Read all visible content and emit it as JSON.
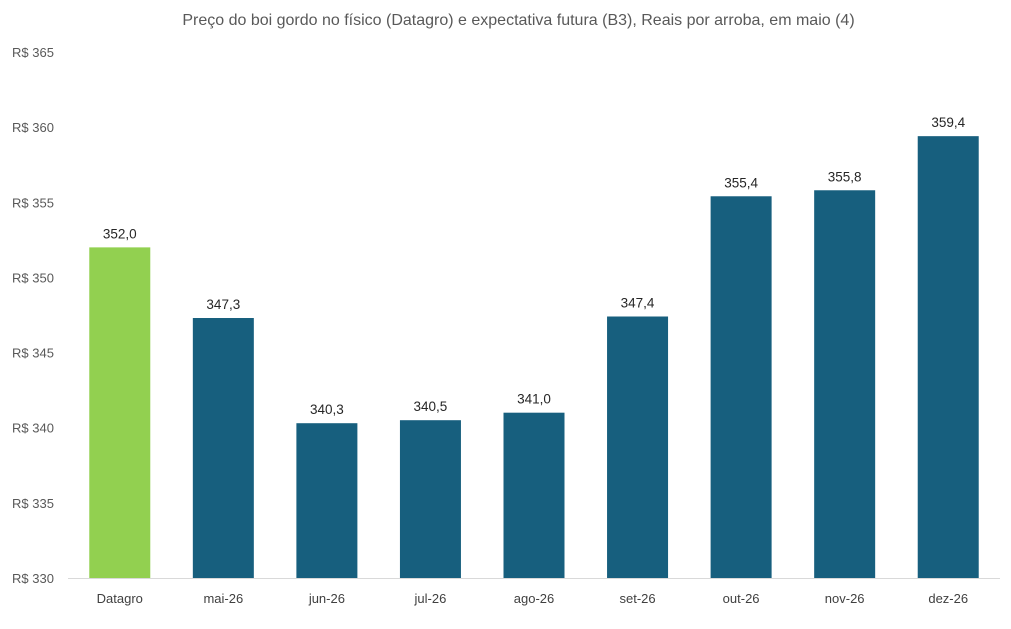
{
  "chart_data": {
    "type": "bar",
    "title": "Preço do boi gordo no físico (Datagro)  e expectativa futura (B3), Reais por arroba, em maio (4)",
    "categories": [
      "Datagro",
      "mai-26",
      "jun-26",
      "jul-26",
      "ago-26",
      "set-26",
      "out-26",
      "nov-26",
      "dez-26"
    ],
    "values": [
      352.0,
      347.3,
      340.3,
      340.5,
      341.0,
      347.4,
      355.4,
      355.8,
      359.4
    ],
    "data_labels": [
      "352,0",
      "347,3",
      "340,3",
      "340,5",
      "341,0",
      "347,4",
      "355,4",
      "355,8",
      "359,4"
    ],
    "colors": [
      "#92d050",
      "#175f7e",
      "#175f7e",
      "#175f7e",
      "#175f7e",
      "#175f7e",
      "#175f7e",
      "#175f7e",
      "#175f7e"
    ],
    "ylim": [
      330,
      365
    ],
    "yticks": [
      330,
      335,
      340,
      345,
      350,
      355,
      360,
      365
    ],
    "ytick_labels": [
      "R$ 330",
      "R$ 335",
      "R$ 340",
      "R$ 345",
      "R$ 350",
      "R$ 355",
      "R$ 360",
      "R$ 365"
    ],
    "xlabel": "",
    "ylabel": "",
    "grid": false,
    "legend": "none"
  }
}
